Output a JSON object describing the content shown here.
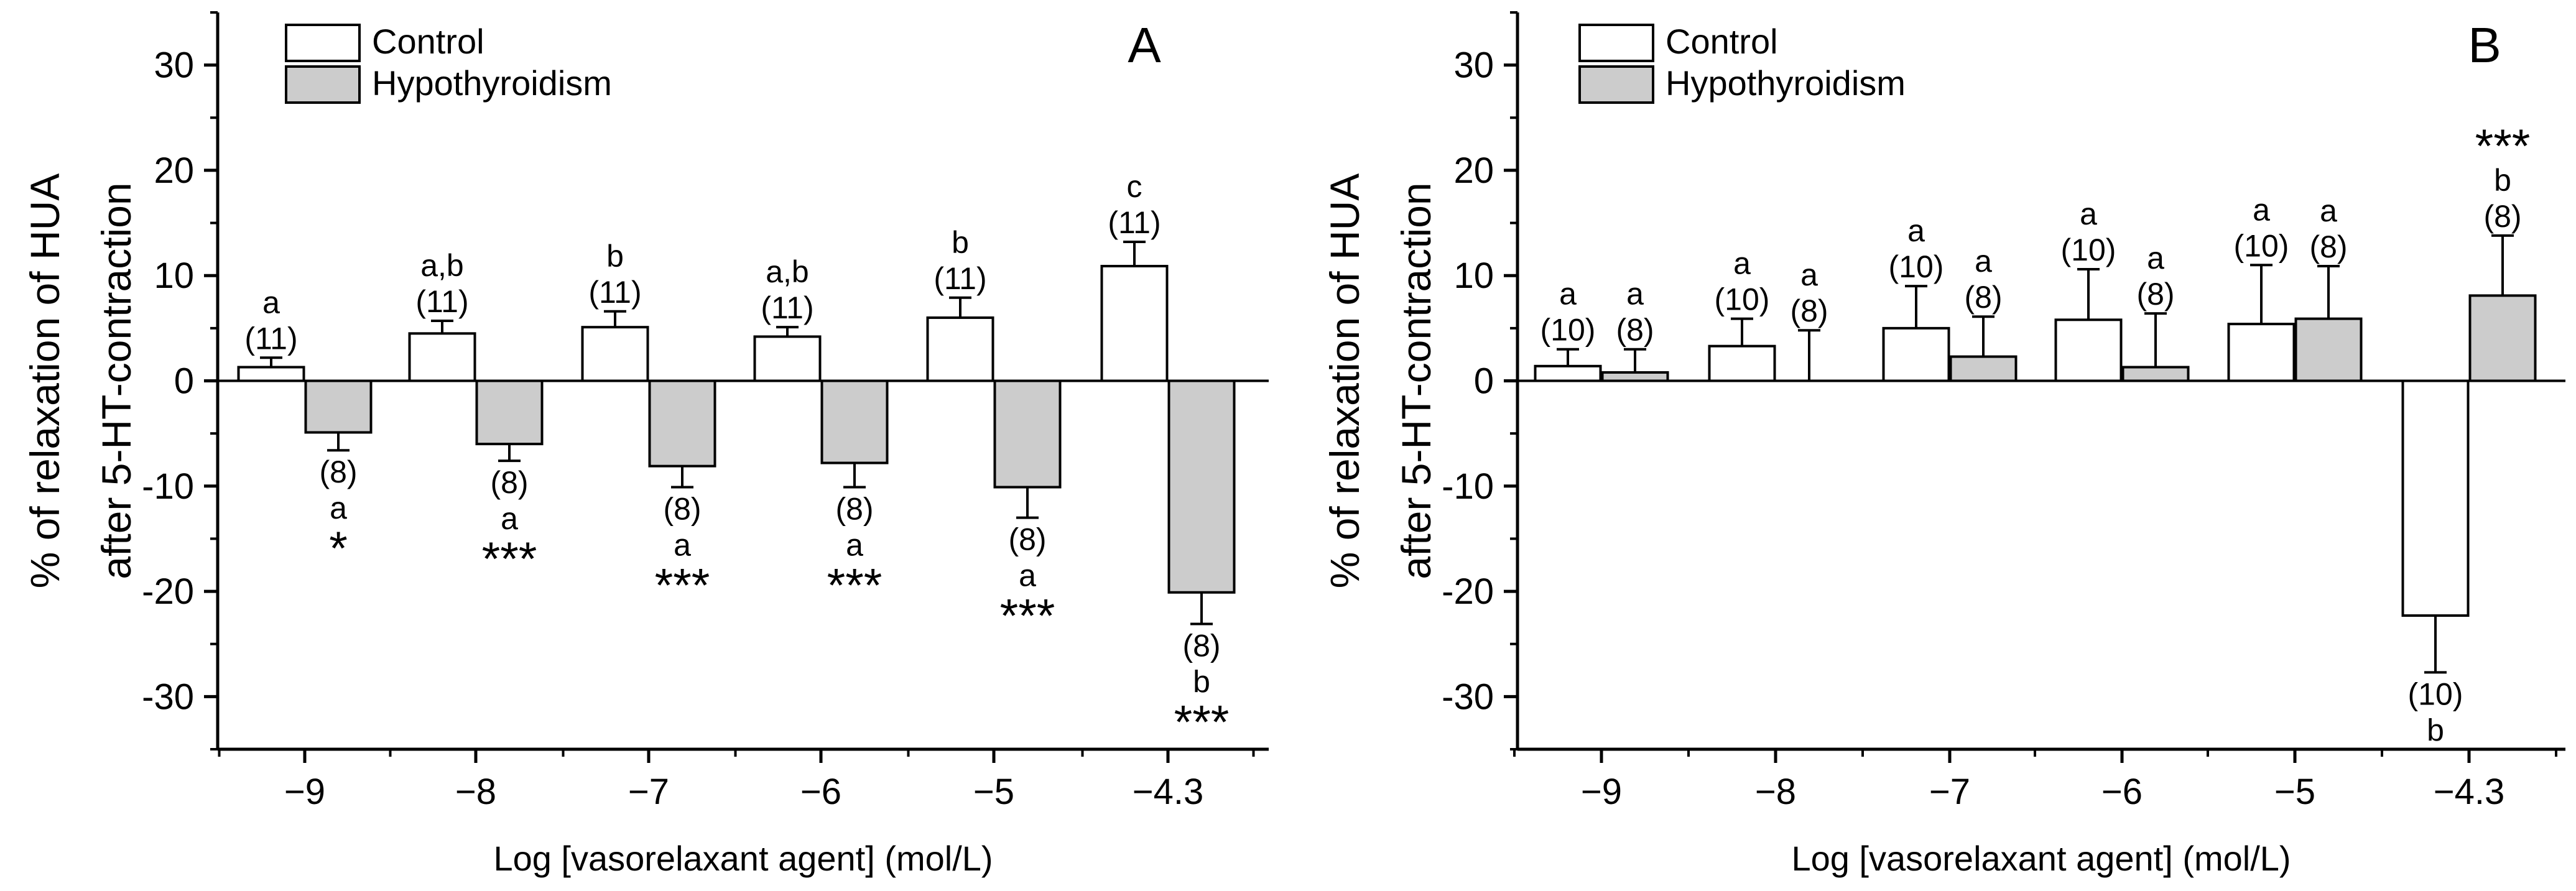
{
  "chart_data": [
    {
      "type": "bar",
      "panel_label": "A",
      "xlabel": "Log [vasorelaxant agent] (mol/L)",
      "ylabel": [
        "% of relaxation of HUA",
        "after 5-HT-contraction"
      ],
      "ylim": [
        -35,
        35
      ],
      "yticks": [
        30,
        20,
        10,
        0,
        -10,
        -20,
        -30
      ],
      "ytick_labels": [
        "30",
        "20",
        "10",
        "0",
        "-10",
        "-20",
        "-30"
      ],
      "categories": [
        "−9",
        "−8",
        "−7",
        "−6",
        "−5",
        "−4.3"
      ],
      "legend_position": "top-left",
      "series": [
        {
          "name": "Control",
          "color": "#ffffff",
          "values": [
            1.3,
            4.5,
            5.1,
            4.2,
            6.0,
            10.9
          ],
          "errors": [
            0.9,
            1.2,
            1.5,
            0.9,
            1.9,
            2.3
          ],
          "n_labels": [
            "(11)",
            "(11)",
            "(11)",
            "(11)",
            "(11)",
            "(11)"
          ],
          "letters": [
            "a",
            "a,b",
            "b",
            "a,b",
            "b",
            "c"
          ],
          "stars": [
            "",
            "",
            "",
            "",
            "",
            ""
          ]
        },
        {
          "name": "Hypothyroidism",
          "color": "#cccccc",
          "values": [
            -4.9,
            -6.0,
            -8.1,
            -7.8,
            -10.1,
            -20.1
          ],
          "errors": [
            1.7,
            1.6,
            2.0,
            2.3,
            2.9,
            3.0
          ],
          "n_labels": [
            "(8)",
            "(8)",
            "(8)",
            "(8)",
            "(8)",
            "(8)"
          ],
          "letters": [
            "a",
            "a",
            "a",
            "a",
            "a",
            "b"
          ],
          "stars": [
            "*",
            "***",
            "***",
            "***",
            "***",
            "***"
          ]
        }
      ]
    },
    {
      "type": "bar",
      "panel_label": "B",
      "xlabel": "Log [vasorelaxant agent] (mol/L)",
      "ylabel": [
        "% of relaxation of HUA",
        "after 5-HT-contraction"
      ],
      "ylim": [
        -35,
        35
      ],
      "yticks": [
        30,
        20,
        10,
        0,
        -10,
        -20,
        -30
      ],
      "ytick_labels": [
        "30",
        "20",
        "10",
        "0",
        "-10",
        "-20",
        "-30"
      ],
      "categories": [
        "−9",
        "−8",
        "−7",
        "−6",
        "−5",
        "−4.3"
      ],
      "legend_position": "top-left",
      "series": [
        {
          "name": "Control",
          "color": "#ffffff",
          "values": [
            1.4,
            3.3,
            5.0,
            5.8,
            5.4,
            -22.3
          ],
          "errors": [
            1.6,
            2.6,
            4.0,
            4.8,
            5.6,
            5.4
          ],
          "n_labels": [
            "(10)",
            "(10)",
            "(10)",
            "(10)",
            "(10)",
            "(10)"
          ],
          "letters": [
            "a",
            "a",
            "a",
            "a",
            "a",
            "b"
          ],
          "stars": [
            "",
            "",
            "",
            "",
            "",
            ""
          ]
        },
        {
          "name": "Hypothyroidism",
          "color": "#cccccc",
          "values": [
            0.8,
            0.0,
            2.3,
            1.3,
            5.9,
            8.1
          ],
          "errors": [
            2.2,
            4.8,
            3.8,
            5.1,
            5.0,
            5.7
          ],
          "n_labels": [
            "(8)",
            "(8)",
            "(8)",
            "(8)",
            "(8)",
            "(8)"
          ],
          "letters": [
            "a",
            "a",
            "a",
            "a",
            "a",
            "b"
          ],
          "stars": [
            "",
            "",
            "",
            "",
            "",
            "***"
          ]
        }
      ]
    }
  ]
}
